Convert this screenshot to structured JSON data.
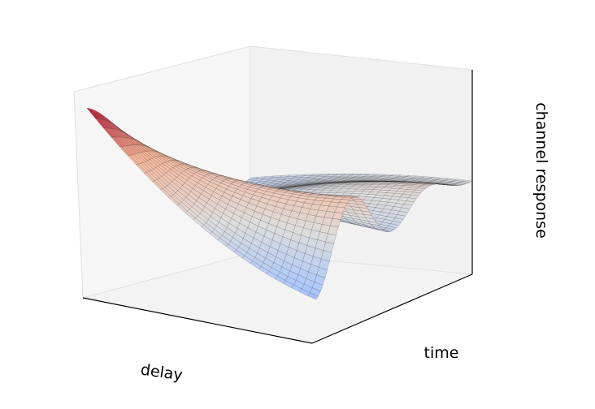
{
  "chart_data": {
    "type": "surface",
    "title": "",
    "xlabel": "delay",
    "ylabel": "time",
    "zlabel": "channel response",
    "ticks": "hidden",
    "grid": false,
    "colormap": "coolwarm",
    "colormap_stops": [
      "#3b4cc0",
      "#aac7fd",
      "#dddddd",
      "#f7b89c",
      "#b40426"
    ],
    "pane_colors": {
      "left": "#f7f7f7",
      "back": "#f2f2f2",
      "floor": "#f4f4f4"
    },
    "edge_color": "#000000",
    "surface_description_values": {
      "z_range": [
        -1,
        1
      ],
      "oscillation_count_along_time": 4,
      "response_decays_along": "time"
    }
  }
}
